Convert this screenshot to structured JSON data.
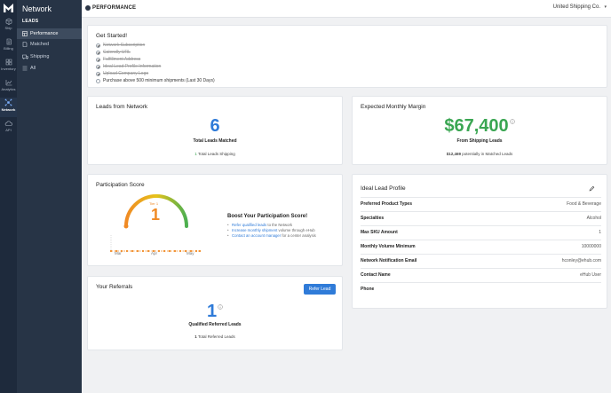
{
  "rail": {
    "items": [
      {
        "label": "Ship",
        "icon": "box-icon"
      },
      {
        "label": "Billing",
        "icon": "document-icon"
      },
      {
        "label": "Inventory",
        "icon": "grid-icon"
      },
      {
        "label": "Analytics",
        "icon": "chart-icon"
      },
      {
        "label": "Network",
        "icon": "network-icon"
      },
      {
        "label": "API",
        "icon": "cloud-icon"
      }
    ]
  },
  "sidebar": {
    "title": "Network",
    "header": "LEADS",
    "items": [
      {
        "label": "Performance",
        "icon": "grid-icon"
      },
      {
        "label": "Matched",
        "icon": "document-icon"
      },
      {
        "label": "Shipping",
        "icon": "truck-icon"
      },
      {
        "label": "All",
        "icon": "list-icon"
      }
    ]
  },
  "topbar": {
    "title": "PERFORMANCE",
    "company": "United Shipping Co."
  },
  "getStarted": {
    "title": "Get Started!",
    "items": [
      {
        "label": "Network Subscription",
        "done": true
      },
      {
        "label": "Calendly URL",
        "done": true
      },
      {
        "label": "Fulfillment Address",
        "done": true
      },
      {
        "label": "Ideal Lead Profile Information",
        "done": true
      },
      {
        "label": "Upload Company Logo",
        "done": true
      },
      {
        "label": "Purchase above 500 minimum shipments (Last 30 Days)",
        "done": false
      }
    ]
  },
  "leadsNetwork": {
    "title": "Leads from Network",
    "value": "6",
    "label": "Total Leads Matched",
    "sub_value": "1",
    "sub_label": " Total Leads Shipping"
  },
  "margin": {
    "title": "Expected Monthly Margin",
    "value": "$67,400",
    "info_icon": "info-icon",
    "label": "From Shipping Leads",
    "sub_value": "$12,469",
    "sub_label": " potentially in Matched Leads"
  },
  "participation": {
    "title": "Participation Score",
    "tier": "Tier 1",
    "score": "1",
    "months": [
      "Mar",
      "Apr",
      "May"
    ],
    "boost_title": "Boost Your Participation Score!",
    "boost_items": [
      {
        "link": "Refer qualified leads",
        "rest": " to the Network"
      },
      {
        "link": "Increase monthly shipment",
        "rest": " volume through eHub"
      },
      {
        "link": "Contact an account manager",
        "rest": " for a center analysis"
      }
    ]
  },
  "idealLead": {
    "title": "Ideal Lead Profile",
    "edit_icon": "pencil-icon",
    "rows": [
      {
        "label": "Preferred Product Types",
        "value": "Food & Beverage"
      },
      {
        "label": "Specialties",
        "value": "Alcohol"
      },
      {
        "label": "Max SKU Amount",
        "value": "1"
      },
      {
        "label": "Monthly Volume Minimum",
        "value": "10000000"
      },
      {
        "label": "Network Notification Email",
        "value": "hconley@ehub.com"
      },
      {
        "label": "Contact Name",
        "value": "eHub User"
      },
      {
        "label": "Phone",
        "value": ""
      }
    ]
  },
  "referrals": {
    "title": "Your Referrals",
    "button": "Refer Lead",
    "value": "1",
    "label": "Qualified Referred Leads",
    "sub_value": "1",
    "sub_label": " Total Referred Leads"
  },
  "colors": {
    "accent_blue": "#2f7bd8",
    "money_green": "#3aa652",
    "gauge_orange": "#f08a24",
    "gauge_green": "#4caf50"
  }
}
